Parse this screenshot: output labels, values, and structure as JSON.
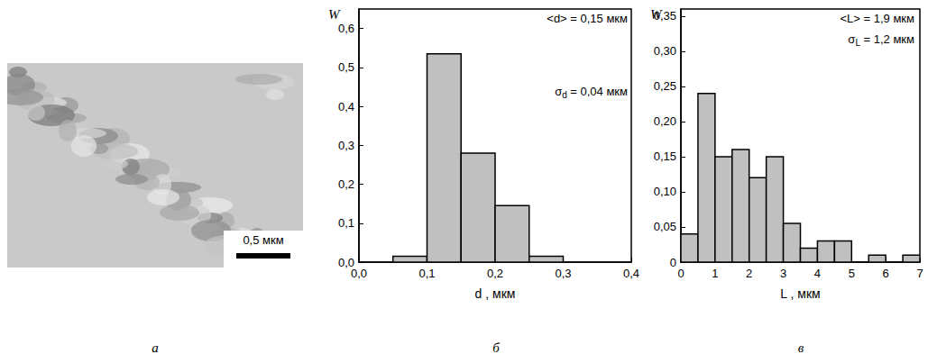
{
  "image_panel": {
    "letter": "а",
    "scale_bar": "0,5 мкм"
  },
  "chart_data": [
    {
      "type": "histogram",
      "letter": "б",
      "ylabel": "W",
      "xlabel": "d , мкм",
      "bins": [
        0.05,
        0.1,
        0.15,
        0.2,
        0.25,
        0.3
      ],
      "values": [
        0.015,
        0.535,
        0.28,
        0.145,
        0.015
      ],
      "color": "#c0c0c0",
      "grid": false,
      "xlim": [
        0,
        0.4
      ],
      "xticks": [
        {
          "value": 0,
          "label": "0,0"
        },
        {
          "value": 0.1,
          "label": "0,1"
        },
        {
          "value": 0.2,
          "label": "0,2"
        },
        {
          "value": 0.3,
          "label": "0,3"
        },
        {
          "value": 0.4,
          "label": "0,4"
        }
      ],
      "ylim": [
        0,
        0.65
      ],
      "yticks": [
        {
          "value": 0,
          "label": "0,0"
        },
        {
          "value": 0.1,
          "label": "0,1"
        },
        {
          "value": 0.2,
          "label": "0,2"
        },
        {
          "value": 0.3,
          "label": "0,3"
        },
        {
          "value": 0.4,
          "label": "0,4"
        },
        {
          "value": 0.5,
          "label": "0,5"
        },
        {
          "value": 0.6,
          "label": "0,6"
        }
      ],
      "annotations": [
        {
          "symbol": "<d>",
          "sub": "",
          "text": " = 0,15 мкм"
        },
        {
          "symbol": "σ",
          "sub": "d",
          "text": " = 0,04 мкм"
        }
      ]
    },
    {
      "type": "histogram",
      "letter": "в",
      "ylabel": "W",
      "xlabel": "L , мкм",
      "bins": [
        0,
        0.5,
        1,
        1.5,
        2,
        2.5,
        3,
        3.5,
        4,
        4.5,
        5,
        5.5,
        6,
        6.5,
        7
      ],
      "values": [
        0.04,
        0.24,
        0.15,
        0.16,
        0.12,
        0.15,
        0.055,
        0.02,
        0.03,
        0.03,
        0,
        0.01,
        0,
        0.01
      ],
      "color": "#c0c0c0",
      "grid": false,
      "xlim": [
        0,
        7
      ],
      "xticks": [
        0,
        1,
        2,
        3,
        4,
        5,
        6,
        7
      ],
      "ylim": [
        0,
        0.36
      ],
      "yticks": [
        0,
        {
          "value": 0.05,
          "label": "0,05"
        },
        {
          "value": 0.1,
          "label": "0,10"
        },
        {
          "value": 0.15,
          "label": "0,15"
        },
        {
          "value": 0.2,
          "label": "0,20"
        },
        {
          "value": 0.25,
          "label": "0,25"
        },
        {
          "value": 0.3,
          "label": "0,30"
        },
        {
          "value": 0.35,
          "label": "0,35"
        }
      ],
      "annotations": [
        {
          "symbol": "<L>",
          "sub": "",
          "text": " = 1,9 мкм"
        },
        {
          "symbol": "σ",
          "sub": "L",
          "text": " = 1,2 мкм"
        }
      ]
    }
  ]
}
